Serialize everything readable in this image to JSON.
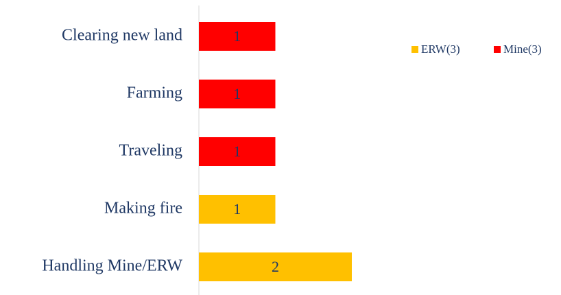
{
  "chart_data": {
    "type": "bar",
    "orientation": "horizontal",
    "stacked": true,
    "categories": [
      "Clearing new land",
      "Farming",
      "Traveling",
      "Making fire",
      "Handling Mine/ERW"
    ],
    "series": [
      {
        "name": "ERW(3)",
        "color": "#ffc000",
        "values": [
          null,
          null,
          null,
          1,
          2
        ]
      },
      {
        "name": "Mine(3)",
        "color": "#ff0000",
        "values": [
          1,
          1,
          1,
          null,
          null
        ]
      }
    ],
    "xlim": [
      0,
      2
    ],
    "legend": "top-right"
  }
}
